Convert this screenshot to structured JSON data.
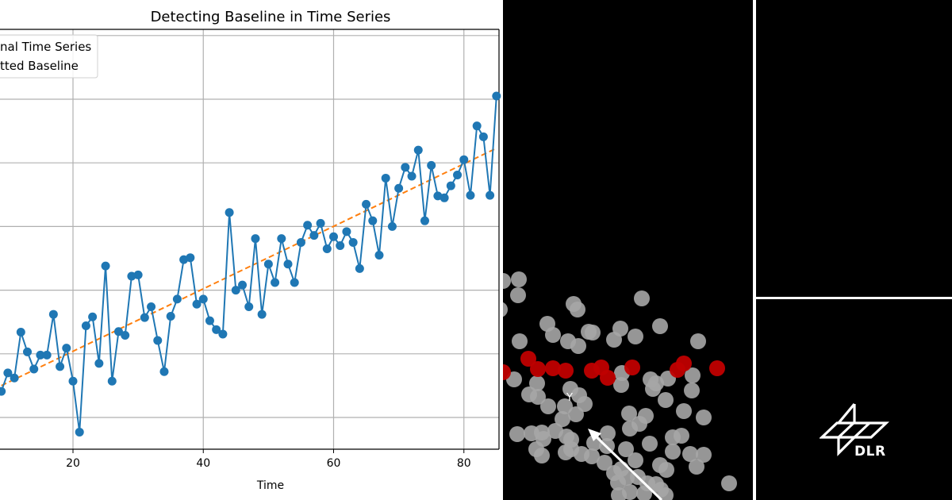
{
  "chart_data": {
    "type": "line",
    "title": "Detecting Baseline in Time Series",
    "xlabel": "Time",
    "ylabel": "",
    "x_ticks": [
      20,
      40,
      60,
      80
    ],
    "y_ticks_visible": false,
    "grid": true,
    "legend": {
      "position": "upper left",
      "entries": [
        "Original Time Series",
        "Fitted Baseline"
      ],
      "visible_text": [
        "nal Time Series",
        "tted Baseline"
      ]
    },
    "xlim_visible": [
      9,
      85
    ],
    "y_units_note": "y tick labels cropped; values expressed in gridline units (0 = lowest visible gridline, 1 per gridline)",
    "series": [
      {
        "name": "Original Time Series",
        "style": "solid line with circle markers",
        "color": "#1f77b4",
        "x": [
          9,
          10,
          11,
          12,
          13,
          14,
          15,
          16,
          17,
          18,
          19,
          20,
          21,
          22,
          23,
          24,
          25,
          26,
          27,
          28,
          29,
          30,
          31,
          32,
          33,
          34,
          35,
          36,
          37,
          38,
          39,
          40,
          41,
          42,
          43,
          44,
          45,
          46,
          47,
          48,
          49,
          50,
          51,
          52,
          53,
          54,
          55,
          56,
          57,
          58,
          59,
          60,
          61,
          62,
          63,
          64,
          65,
          66,
          67,
          68,
          69,
          70,
          71,
          72,
          73,
          74,
          75,
          76,
          77,
          78,
          79,
          80,
          81,
          82,
          83,
          84,
          85
        ],
        "values": [
          0.41,
          0.7,
          0.62,
          1.34,
          1.03,
          0.76,
          0.98,
          0.98,
          1.62,
          0.8,
          1.09,
          0.57,
          -0.23,
          1.44,
          1.58,
          0.85,
          2.38,
          0.57,
          1.35,
          1.29,
          2.22,
          2.24,
          1.57,
          1.74,
          1.21,
          0.72,
          1.59,
          1.86,
          2.48,
          2.51,
          1.78,
          1.86,
          1.52,
          1.38,
          1.31,
          3.22,
          2.0,
          2.08,
          1.74,
          2.81,
          1.62,
          2.41,
          2.12,
          2.81,
          2.41,
          2.12,
          2.75,
          3.02,
          2.86,
          3.05,
          2.65,
          2.84,
          2.7,
          2.92,
          2.75,
          2.34,
          3.35,
          3.09,
          2.55,
          3.76,
          3.0,
          3.6,
          3.93,
          3.79,
          4.2,
          3.09,
          3.96,
          3.48,
          3.45,
          3.64,
          3.81,
          4.05,
          3.49,
          4.58,
          4.41,
          3.49,
          5.05
        ]
      },
      {
        "name": "Fitted Baseline",
        "style": "dashed line",
        "color": "#ff7f0e",
        "x": [
          9,
          85
        ],
        "values": [
          0.5,
          4.23
        ]
      }
    ]
  },
  "scatter_panel": {
    "background": "#000000",
    "label": "Y",
    "point_colors": {
      "grey": "#a6a6a6",
      "red": "#c00000"
    },
    "arrow_color": "#ffffff"
  },
  "logo": {
    "text": "DLR"
  }
}
